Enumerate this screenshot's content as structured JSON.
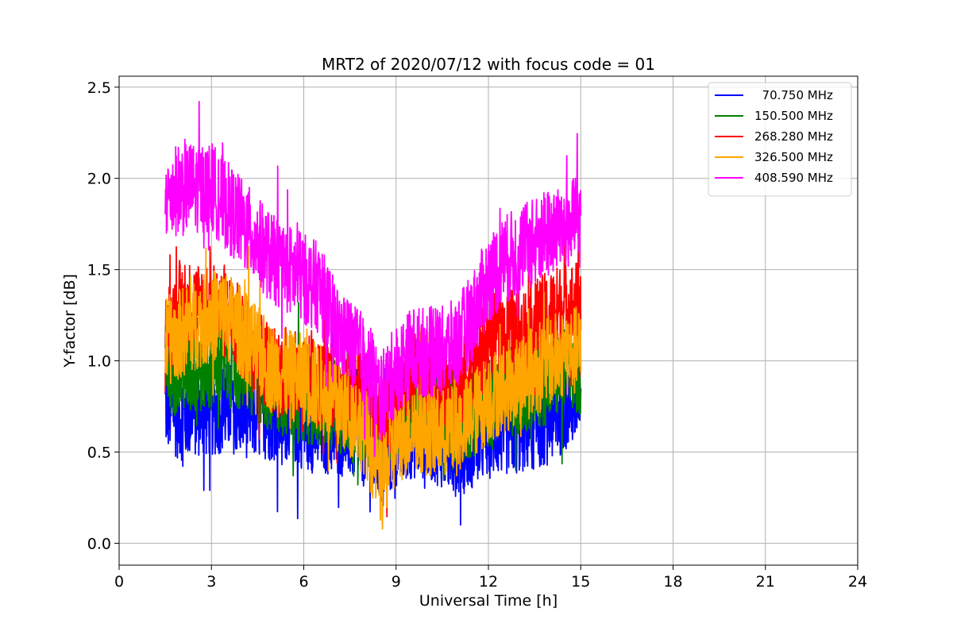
{
  "chart_data": {
    "type": "line",
    "title": "MRT2 of 2020/07/12 with focus code = 01",
    "xlabel": "Universal Time [h]",
    "ylabel": "Y-factor [dB]",
    "xlim": [
      0,
      24
    ],
    "ylim": [
      -0.12,
      2.56
    ],
    "xticks": [
      0,
      3,
      6,
      9,
      12,
      15,
      18,
      21,
      24
    ],
    "xtick_labels": [
      "0",
      "3",
      "6",
      "9",
      "12",
      "15",
      "18",
      "21",
      "24"
    ],
    "yticks": [
      0.0,
      0.5,
      1.0,
      1.5,
      2.0,
      2.5
    ],
    "ytick_labels": [
      "0.0",
      "0.5",
      "1.0",
      "1.5",
      "2.0",
      "2.5"
    ],
    "grid": true,
    "legend_position": "upper right",
    "series": [
      {
        "name": "  70.750 MHz",
        "color": "#0000ff",
        "x": [
          1.5,
          2.0,
          2.5,
          3.0,
          3.5,
          4.0,
          4.5,
          5.0,
          5.5,
          6.0,
          6.5,
          7.0,
          7.5,
          8.0,
          8.5,
          9.0,
          9.5,
          10.0,
          10.5,
          11.0,
          11.5,
          12.0,
          12.5,
          13.0,
          13.5,
          14.0,
          14.5,
          15.0
        ],
        "y": [
          0.75,
          0.7,
          0.72,
          0.72,
          0.75,
          0.72,
          0.7,
          0.7,
          0.7,
          0.65,
          0.62,
          0.62,
          0.6,
          0.55,
          0.45,
          0.55,
          0.6,
          0.6,
          0.55,
          0.5,
          0.55,
          0.6,
          0.62,
          0.62,
          0.65,
          0.68,
          0.75,
          0.8
        ]
      },
      {
        "name": "150.500 MHz",
        "color": "#008000",
        "x": [
          1.5,
          2.0,
          2.5,
          3.0,
          3.5,
          4.0,
          4.5,
          5.0,
          5.5,
          6.0,
          6.5,
          7.0,
          7.5,
          8.0,
          8.5,
          9.0,
          9.5,
          10.0,
          10.5,
          11.0,
          11.5,
          12.0,
          12.5,
          13.0,
          13.5,
          14.0,
          14.5,
          15.0
        ],
        "y": [
          0.95,
          0.95,
          0.95,
          0.98,
          1.0,
          0.95,
          0.9,
          0.85,
          0.82,
          0.8,
          0.78,
          0.75,
          0.72,
          0.68,
          0.6,
          0.7,
          0.78,
          0.78,
          0.72,
          0.68,
          0.72,
          0.78,
          0.82,
          0.85,
          0.88,
          0.9,
          0.95,
          0.95
        ]
      },
      {
        "name": "268.280 MHz",
        "color": "#ff0000",
        "x": [
          1.5,
          2.0,
          2.5,
          3.0,
          3.5,
          4.0,
          4.5,
          5.0,
          5.5,
          6.0,
          6.5,
          7.0,
          7.5,
          8.0,
          8.5,
          9.0,
          9.5,
          10.0,
          10.5,
          11.0,
          11.5,
          12.0,
          12.5,
          13.0,
          13.5,
          14.0,
          14.5,
          15.0
        ],
        "y": [
          1.15,
          1.3,
          1.3,
          1.3,
          1.25,
          1.15,
          1.05,
          0.95,
          0.92,
          0.9,
          0.88,
          0.85,
          0.85,
          0.82,
          0.6,
          0.8,
          0.9,
          0.92,
          0.85,
          0.85,
          0.95,
          1.1,
          1.15,
          1.15,
          1.2,
          1.25,
          1.3,
          1.3
        ]
      },
      {
        "name": "326.500 MHz",
        "color": "#ffa500",
        "x": [
          1.5,
          2.0,
          2.5,
          3.0,
          3.5,
          4.0,
          4.5,
          5.0,
          5.5,
          6.0,
          6.5,
          7.0,
          7.5,
          8.0,
          8.5,
          9.0,
          9.5,
          10.0,
          10.5,
          11.0,
          11.5,
          12.0,
          12.5,
          13.0,
          13.5,
          14.0,
          14.5,
          15.0
        ],
        "y": [
          1.1,
          1.15,
          1.2,
          1.25,
          1.25,
          1.15,
          1.05,
          0.95,
          0.92,
          0.9,
          0.85,
          0.78,
          0.72,
          0.62,
          0.35,
          0.55,
          0.65,
          0.62,
          0.6,
          0.62,
          0.7,
          0.8,
          0.85,
          0.9,
          0.95,
          1.0,
          1.05,
          1.05
        ]
      },
      {
        "name": "408.590 MHz",
        "color": "#ff00ff",
        "x": [
          1.5,
          2.0,
          2.5,
          3.0,
          3.5,
          4.0,
          4.5,
          5.0,
          5.5,
          6.0,
          6.5,
          7.0,
          7.5,
          8.0,
          8.5,
          9.0,
          9.5,
          10.0,
          10.5,
          11.0,
          11.5,
          12.0,
          12.5,
          13.0,
          13.5,
          14.0,
          14.5,
          15.0
        ],
        "y": [
          1.9,
          1.95,
          1.95,
          1.95,
          1.85,
          1.75,
          1.65,
          1.55,
          1.5,
          1.45,
          1.4,
          1.2,
          1.1,
          1.0,
          0.8,
          0.95,
          1.05,
          1.05,
          1.05,
          1.1,
          1.25,
          1.45,
          1.55,
          1.6,
          1.65,
          1.7,
          1.75,
          1.75
        ]
      }
    ]
  }
}
